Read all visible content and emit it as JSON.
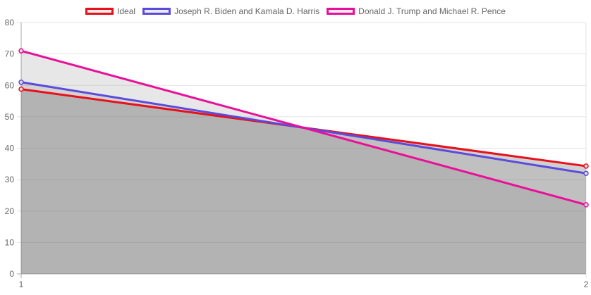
{
  "chart_data": {
    "type": "line",
    "x": [
      "1",
      "2"
    ],
    "ylim": [
      0,
      80
    ],
    "yticks": [
      0,
      10,
      20,
      30,
      40,
      50,
      60,
      70,
      80
    ],
    "grid": true,
    "legend_position": "top",
    "series": [
      {
        "name": "Ideal",
        "values": [
          58.8,
          34.3
        ],
        "color": "#e8101b"
      },
      {
        "name": "Joseph R. Biden and Kamala D. Harris",
        "values": [
          61,
          32
        ],
        "color": "#5b4bdc"
      },
      {
        "name": "Donald J. Trump and Michael R. Pence",
        "values": [
          71,
          22
        ],
        "color": "#ea0f9a"
      }
    ]
  }
}
